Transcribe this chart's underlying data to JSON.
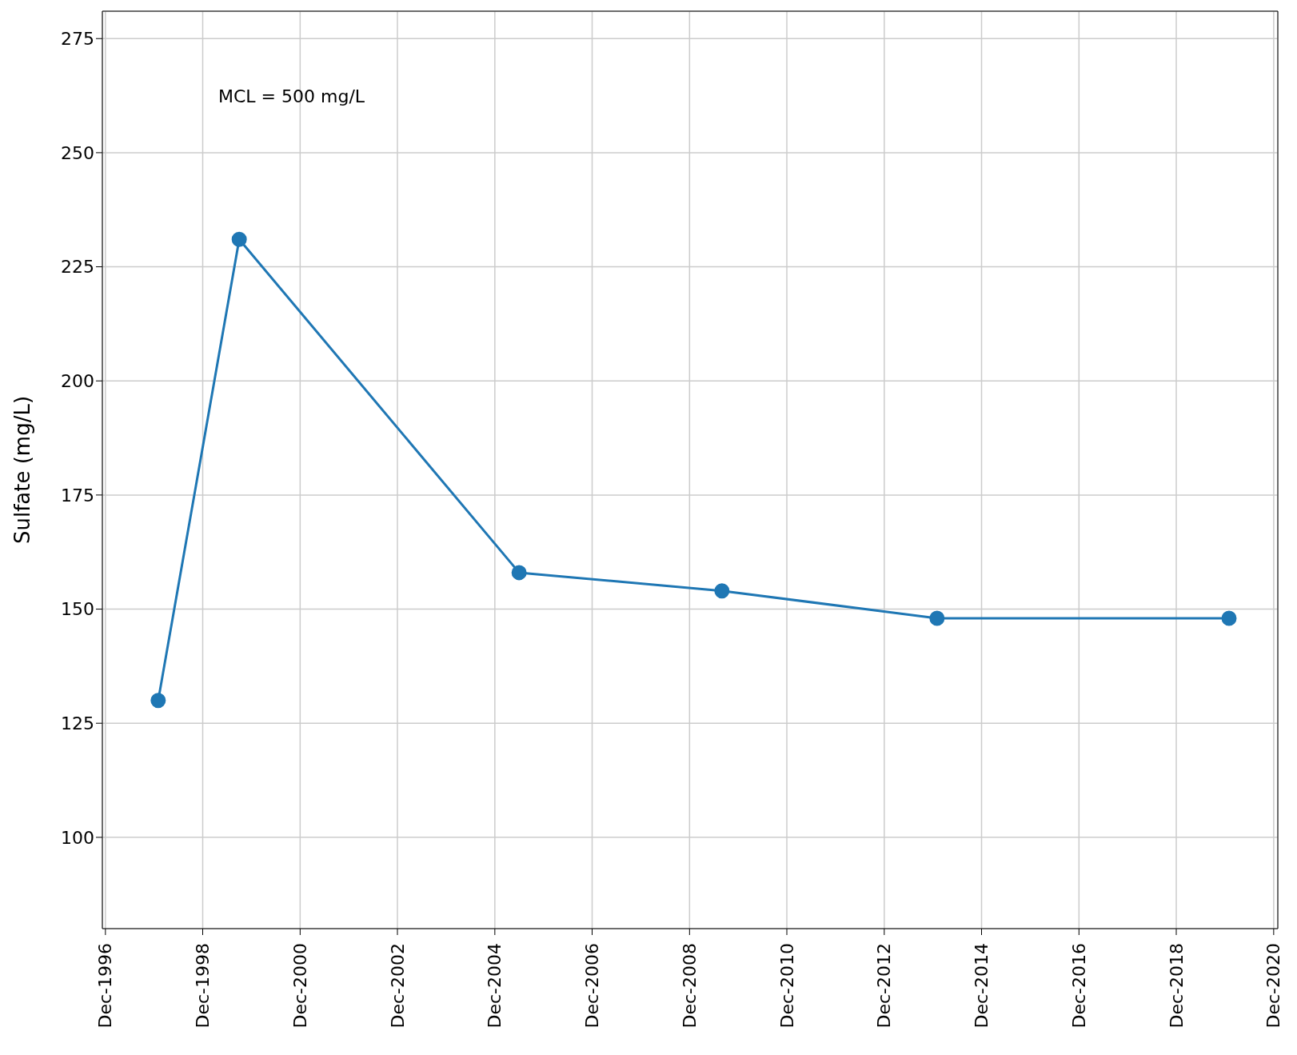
{
  "chart_data": {
    "type": "line",
    "ylabel": "Sulfate (mg/L)",
    "annotations": [
      "MCL = 500 mg/L"
    ],
    "x": [
      "1998-01",
      "1999-09",
      "2005-06",
      "2009-08",
      "2014-01",
      "2020-01"
    ],
    "series": [
      {
        "color": "#1f77b4",
        "values": [
          130,
          231,
          158,
          154,
          148,
          148
        ]
      }
    ],
    "xlim": [
      "1996-11-08",
      "2021-01-01"
    ],
    "xticks": [
      {
        "value": "1996-12-01",
        "label": "Dec-1996"
      },
      {
        "value": "1998-12-01",
        "label": "Dec-1998"
      },
      {
        "value": "2000-12-01",
        "label": "Dec-2000"
      },
      {
        "value": "2002-12-01",
        "label": "Dec-2002"
      },
      {
        "value": "2004-12-01",
        "label": "Dec-2004"
      },
      {
        "value": "2006-12-01",
        "label": "Dec-2006"
      },
      {
        "value": "2008-12-01",
        "label": "Dec-2008"
      },
      {
        "value": "2010-12-01",
        "label": "Dec-2010"
      },
      {
        "value": "2012-12-01",
        "label": "Dec-2012"
      },
      {
        "value": "2014-12-01",
        "label": "Dec-2014"
      },
      {
        "value": "2016-12-01",
        "label": "Dec-2016"
      },
      {
        "value": "2018-12-01",
        "label": "Dec-2018"
      },
      {
        "value": "2020-12-01",
        "label": "Dec-2020"
      }
    ],
    "ylim": [
      80,
      281
    ],
    "yticks": [
      100,
      125,
      150,
      175,
      200,
      225,
      250,
      275
    ],
    "grid": true,
    "marker": "circle",
    "line_style": "solid"
  }
}
